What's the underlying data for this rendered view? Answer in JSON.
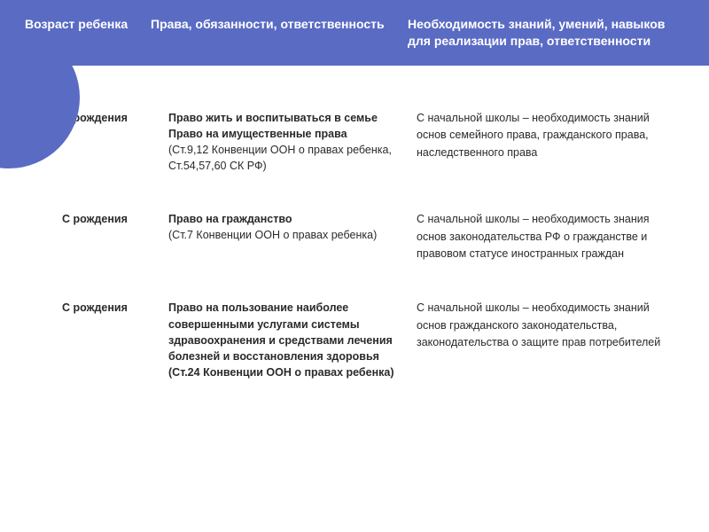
{
  "colors": {
    "header_bg": "#5a6bc4",
    "header_text": "#ffffff",
    "body_text": "#2a2a2a",
    "page_bg": "#ffffff"
  },
  "header": {
    "col1": "Возраст ребенка",
    "col2": "Права, обязанности, ответственность",
    "col3": "Необходимость знаний, умений, навыков для реализации прав, ответственности"
  },
  "rows": [
    {
      "age": "С рождения",
      "rights_bold": "Право жить и воспитываться в семье Право на имущественные права",
      "rights_norm": "(Ст.9,12 Конвенции ООН о правах ребенка, Ст.54,57,60 СК РФ)",
      "need": "С начальной школы – необходимость знаний основ семейного права, гражданского права, наследственного права"
    },
    {
      "age": "С рождения",
      "rights_bold": "Право на гражданство",
      "rights_norm": "(Ст.7 Конвенции ООН о правах ребенка)",
      "need": "С начальной школы – необходимость знания основ законодательства РФ о гражданстве и правовом статусе иностранных граждан"
    },
    {
      "age": "С рождения",
      "rights_bold": "Право на пользование наиболее совершенными услугами системы здравоохранения и средствами лечения болезней и восстановления здоровья",
      "rights_norm": " (Ст.24 Конвенции ООН о правах ребенка)",
      "need": "С начальной школы – необходимость знаний основ гражданского законодательства, законодательства о защите прав потребителей"
    }
  ]
}
